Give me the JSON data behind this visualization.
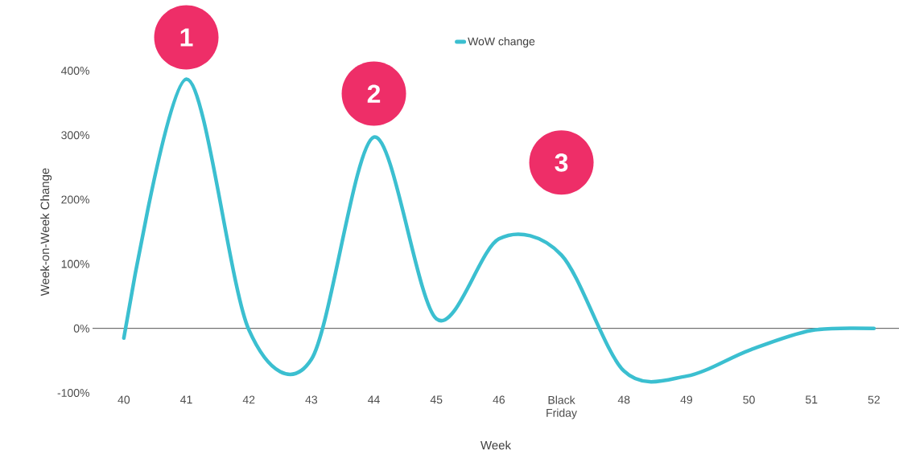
{
  "chart_data": {
    "type": "line",
    "xlabel": "Week",
    "ylabel": "Week-on-Week Change",
    "categories": [
      "40",
      "41",
      "42",
      "43",
      "44",
      "45",
      "46",
      "Black Friday",
      "48",
      "49",
      "50",
      "51",
      "52"
    ],
    "series": [
      {
        "name": "WoW change",
        "color": "#3bbfd0",
        "values": [
          -15,
          387,
          -2,
          -48,
          297,
          15,
          139,
          114,
          -66,
          -74,
          -34,
          -3,
          0
        ]
      }
    ],
    "ylim": [
      -100,
      400
    ],
    "yticks": [
      {
        "value": -100,
        "label": "-100%"
      },
      {
        "value": 0,
        "label": "0%"
      },
      {
        "value": 100,
        "label": "100%"
      },
      {
        "value": 200,
        "label": "200%"
      },
      {
        "value": 300,
        "label": "300%"
      },
      {
        "value": 400,
        "label": "400%"
      }
    ],
    "ref_lines": [
      {
        "axis": "y",
        "value": 0,
        "color": "#000000"
      }
    ],
    "annotations": [
      "1",
      "2",
      "3"
    ],
    "legend": "top",
    "grid": false,
    "marker": "none",
    "line_style": "solid"
  }
}
